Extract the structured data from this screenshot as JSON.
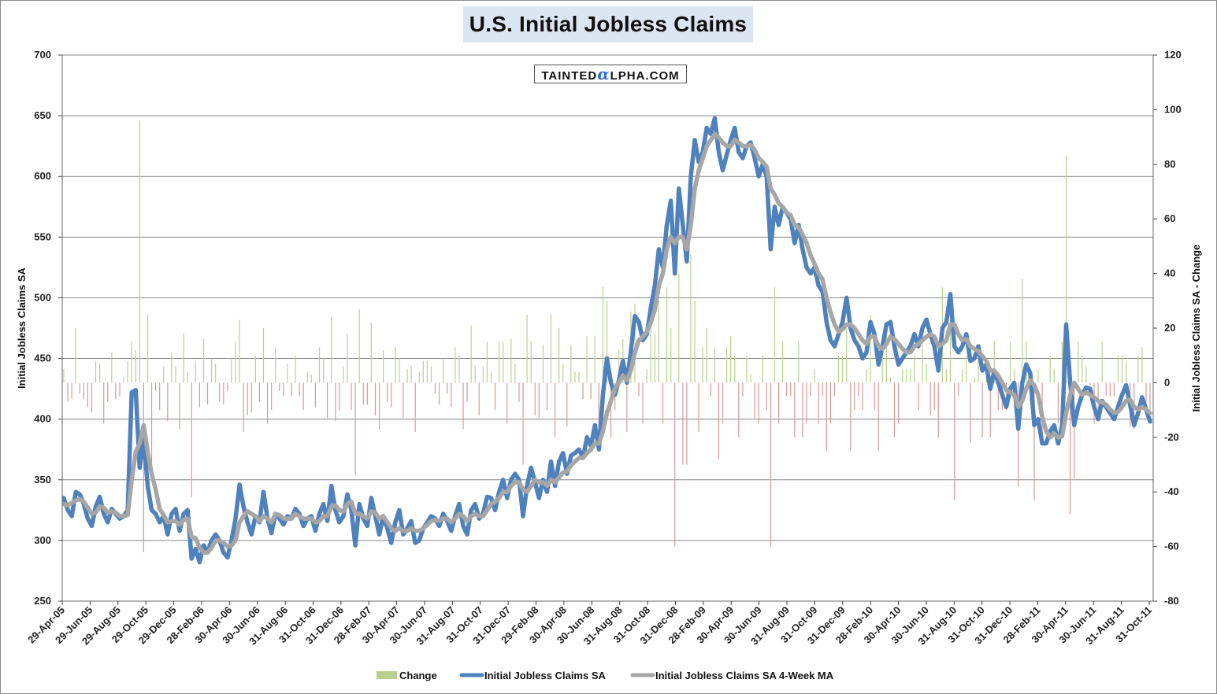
{
  "chart_data": {
    "type": "line",
    "title": "U.S. Initial Jobless Claims",
    "watermark": "TaintedAlpha.com",
    "ylabel": "Initial Jobless Claims SA",
    "y2label": "Initial Jobless Claims SA - Change",
    "ylim": [
      250,
      700
    ],
    "y2lim": [
      -80,
      120
    ],
    "yticks": [
      250,
      300,
      350,
      400,
      450,
      500,
      550,
      600,
      650,
      700
    ],
    "y2ticks": [
      -80,
      -60,
      -40,
      -20,
      0,
      20,
      40,
      60,
      80,
      100,
      120
    ],
    "xticks": [
      "29-Apr-05",
      "29-Jun-05",
      "29-Aug-05",
      "29-Oct-05",
      "29-Dec-05",
      "28-Feb-06",
      "30-Apr-06",
      "30-Jun-06",
      "31-Aug-06",
      "31-Oct-06",
      "31-Dec-06",
      "28-Feb-07",
      "30-Apr-07",
      "30-Jun-07",
      "31-Aug-07",
      "31-Oct-07",
      "31-Dec-07",
      "29-Feb-08",
      "30-Apr-08",
      "30-Jun-08",
      "31-Aug-08",
      "31-Oct-08",
      "31-Dec-08",
      "28-Feb-09",
      "30-Apr-09",
      "30-Jun-09",
      "31-Aug-09",
      "31-Oct-09",
      "31-Dec-09",
      "28-Feb-10",
      "30-Apr-10",
      "30-Jun-10",
      "31-Aug-10",
      "31-Oct-10",
      "31-Dec-10",
      "28-Feb-11",
      "30-Apr-11",
      "30-Jun-11",
      "31-Aug-11",
      "31-Oct-11"
    ],
    "legend_position": "bottom",
    "grid": true,
    "colors": {
      "claims": "#4f81bd",
      "ma": "#a6a6a6",
      "change_up": "#9bbb59",
      "change_down": "#c0504d",
      "grid": "#868686"
    },
    "series": [
      {
        "name": "Initial Jobless Claims SA",
        "axis": "left",
        "values": [
          335,
          325,
          320,
          340,
          338,
          330,
          318,
          312,
          328,
          336,
          322,
          315,
          326,
          322,
          318,
          320,
          325,
          422,
          424,
          360,
          384,
          345,
          325,
          322,
          315,
          320,
          305,
          322,
          326,
          308,
          322,
          325,
          285,
          293,
          282,
          296,
          290,
          300,
          305,
          300,
          290,
          286,
          300,
          318,
          346,
          328,
          315,
          305,
          320,
          315,
          340,
          318,
          306,
          322,
          318,
          313,
          320,
          318,
          326,
          322,
          312,
          318,
          320,
          308,
          322,
          330,
          316,
          345,
          325,
          315,
          320,
          338,
          325,
          296,
          330,
          318,
          312,
          335,
          320,
          305,
          320,
          310,
          298,
          315,
          325,
          305,
          310,
          316,
          298,
          300,
          310,
          315,
          320,
          318,
          312,
          322,
          316,
          308,
          320,
          330,
          312,
          305,
          325,
          330,
          318,
          322,
          336,
          335,
          325,
          340,
          350,
          335,
          350,
          355,
          350,
          320,
          345,
          360,
          348,
          335,
          350,
          340,
          365,
          345,
          365,
          372,
          355,
          370,
          372,
          375,
          368,
          385,
          378,
          395,
          375,
          420,
          450,
          430,
          420,
          432,
          448,
          430,
          456,
          485,
          480,
          465,
          470,
          492,
          510,
          540,
          525,
          560,
          580,
          520,
          590,
          560,
          530,
          600,
          630,
          612,
          620,
          640,
          635,
          648,
          620,
          605,
          618,
          630,
          640,
          620,
          615,
          625,
          628,
          615,
          600,
          610,
          600,
          540,
          575,
          560,
          575,
          570,
          565,
          545,
          560,
          540,
          525,
          520,
          525,
          510,
          505,
          480,
          465,
          460,
          470,
          480,
          500,
          475,
          465,
          460,
          450,
          455,
          480,
          470,
          445,
          460,
          478,
          480,
          460,
          445,
          450,
          455,
          460,
          470,
          460,
          475,
          482,
          470,
          460,
          440,
          475,
          480,
          503,
          460,
          455,
          460,
          470,
          448,
          450,
          460,
          440,
          445,
          425,
          440,
          430,
          420,
          410,
          425,
          430,
          392,
          430,
          445,
          438,
          395,
          400,
          380,
          380,
          390,
          395,
          380,
          395,
          478,
          430,
          395,
          410,
          420,
          426,
          425,
          410,
          400,
          415,
          410,
          405,
          400,
          410,
          420,
          428,
          412,
          395,
          405,
          418,
          408,
          398
        ]
      },
      {
        "name": "Initial Jobless Claims SA 4-Week MA",
        "axis": "left",
        "values": [
          330,
          329,
          331,
          333,
          334,
          332,
          327,
          322,
          323,
          328,
          327,
          323,
          324,
          323,
          320,
          320,
          321,
          350,
          373,
          380,
          395,
          373,
          355,
          342,
          326,
          321,
          315,
          316,
          316,
          313,
          317,
          318,
          303,
          302,
          294,
          290,
          290,
          294,
          300,
          300,
          298,
          295,
          296,
          300,
          315,
          320,
          324,
          322,
          320,
          316,
          320,
          318,
          315,
          322,
          321,
          318,
          318,
          318,
          322,
          320,
          318,
          318,
          318,
          315,
          316,
          320,
          320,
          328,
          329,
          325,
          324,
          330,
          332,
          322,
          322,
          320,
          318,
          324,
          323,
          318,
          320,
          315,
          310,
          308,
          310,
          308,
          308,
          310,
          308,
          308,
          310,
          313,
          316,
          317,
          316,
          318,
          318,
          315,
          318,
          322,
          320,
          316,
          320,
          322,
          320,
          320,
          325,
          330,
          332,
          335,
          340,
          340,
          345,
          348,
          348,
          342,
          340,
          345,
          350,
          348,
          348,
          345,
          350,
          348,
          352,
          356,
          357,
          362,
          365,
          368,
          368,
          372,
          375,
          380,
          380,
          390,
          405,
          415,
          425,
          430,
          436,
          432,
          440,
          455,
          465,
          468,
          472,
          480,
          490,
          510,
          520,
          540,
          550,
          545,
          550,
          550,
          540,
          560,
          590,
          605,
          615,
          625,
          630,
          635,
          632,
          628,
          625,
          625,
          630,
          628,
          625,
          625,
          626,
          622,
          615,
          612,
          608,
          590,
          585,
          578,
          575,
          570,
          568,
          560,
          558,
          552,
          545,
          535,
          528,
          520,
          515,
          500,
          488,
          478,
          472,
          474,
          478,
          478,
          475,
          470,
          465,
          462,
          468,
          468,
          460,
          458,
          462,
          468,
          466,
          462,
          458,
          455,
          455,
          460,
          462,
          465,
          468,
          470,
          468,
          460,
          462,
          465,
          478,
          478,
          470,
          465,
          466,
          460,
          458,
          456,
          452,
          448,
          440,
          440,
          436,
          430,
          424,
          422,
          420,
          410,
          415,
          425,
          432,
          428,
          420,
          402,
          390,
          385,
          388,
          385,
          386,
          405,
          420,
          430,
          425,
          420,
          422,
          420,
          418,
          415,
          414,
          412,
          408,
          405,
          406,
          410,
          415,
          416,
          410,
          408,
          410,
          408,
          405
        ]
      },
      {
        "name": "Change",
        "axis": "right",
        "values": [
          5,
          -7,
          -6,
          20,
          -4,
          -6,
          -9,
          -11,
          8,
          7,
          -15,
          -7,
          11,
          -6,
          -5,
          2,
          8,
          15,
          12,
          96,
          -62,
          25,
          -34,
          -3,
          -10,
          6,
          -14,
          11,
          6,
          -17,
          18,
          4,
          -42,
          8,
          -9,
          16,
          -8,
          9,
          7,
          -7,
          -8,
          -3,
          9,
          15,
          23,
          -18,
          -12,
          -11,
          10,
          -7,
          20,
          -15,
          -10,
          13,
          -3,
          -5,
          7,
          -5,
          10,
          -5,
          -10,
          4,
          3,
          -9,
          13,
          9,
          -13,
          24,
          -14,
          -10,
          6,
          18,
          -10,
          -34,
          27,
          -8,
          -8,
          22,
          -12,
          -17,
          12,
          -7,
          -9,
          13,
          9,
          -13,
          5,
          6,
          -18,
          4,
          8,
          8,
          6,
          -4,
          -8,
          9,
          -4,
          -9,
          13,
          10,
          -17,
          -7,
          21,
          6,
          -12,
          6,
          15,
          4,
          -10,
          15,
          15,
          -15,
          16,
          7,
          -7,
          -30,
          25,
          15,
          -12,
          -13,
          14,
          -10,
          25,
          -20,
          20,
          7,
          -16,
          14,
          4,
          4,
          -6,
          17,
          -6,
          17,
          -20,
          35,
          30,
          -20,
          -10,
          12,
          16,
          -18,
          26,
          29,
          -5,
          -15,
          5,
          22,
          18,
          30,
          -15,
          35,
          20,
          -60,
          40,
          -30,
          -30,
          47,
          30,
          -18,
          13,
          20,
          -5,
          13,
          -28,
          -15,
          13,
          17,
          10,
          -20,
          -5,
          10,
          3,
          -13,
          -15,
          10,
          -10,
          -60,
          35,
          -15,
          15,
          -5,
          -5,
          -20,
          15,
          -20,
          -15,
          -5,
          5,
          -15,
          -5,
          -25,
          -15,
          -5,
          10,
          10,
          20,
          -25,
          -10,
          -5,
          -10,
          5,
          25,
          -10,
          -25,
          15,
          18,
          2,
          -20,
          -15,
          5,
          5,
          5,
          10,
          -10,
          15,
          7,
          -12,
          -10,
          -20,
          35,
          5,
          23,
          -43,
          -5,
          5,
          10,
          -22,
          2,
          10,
          -20,
          5,
          -20,
          15,
          -10,
          -10,
          -10,
          15,
          5,
          -38,
          38,
          15,
          -7,
          -43,
          5,
          -20,
          0,
          10,
          5,
          -15,
          15,
          83,
          -48,
          -35,
          15,
          10,
          6,
          -1,
          -15,
          -10,
          15,
          -5,
          -5,
          -5,
          10,
          10,
          8,
          -16,
          -17,
          10,
          13,
          -10,
          -10
        ]
      }
    ]
  },
  "legend": {
    "items": [
      {
        "label": "Change",
        "color": "#b9d08f"
      },
      {
        "label": "Initial Jobless Claims SA",
        "color": "#4f81bd"
      },
      {
        "label": "Initial Jobless Claims SA 4-Week MA",
        "color": "#a6a6a6"
      }
    ]
  }
}
